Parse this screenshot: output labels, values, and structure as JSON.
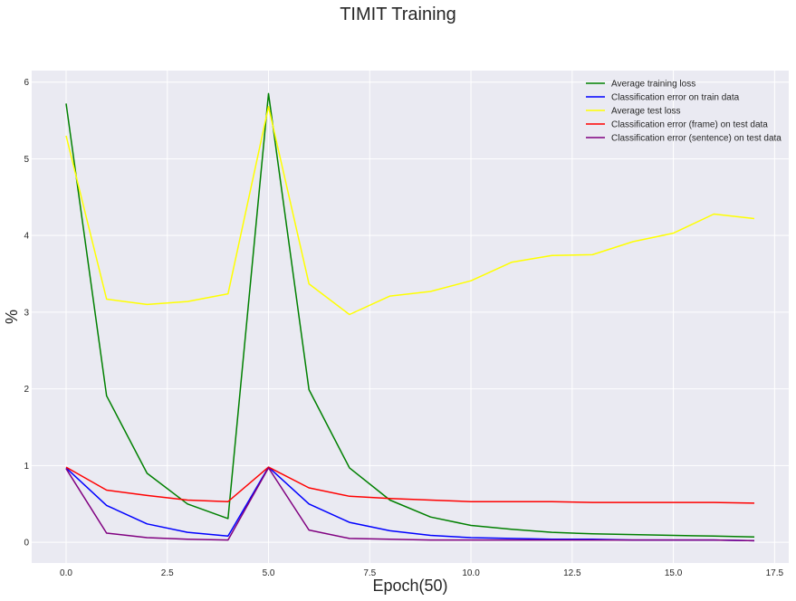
{
  "chart_data": {
    "type": "line",
    "title": "TIMIT Training",
    "xlabel": "Epoch(50)",
    "ylabel": "%",
    "xlim": [
      -0.85,
      17.85
    ],
    "ylim": [
      -0.27,
      6.15
    ],
    "xticks": [
      0.0,
      2.5,
      5.0,
      7.5,
      10.0,
      12.5,
      15.0,
      17.5
    ],
    "xtick_labels": [
      "0.0",
      "2.5",
      "5.0",
      "7.5",
      "10.0",
      "12.5",
      "15.0",
      "17.5"
    ],
    "yticks": [
      0,
      1,
      2,
      3,
      4,
      5,
      6
    ],
    "ytick_labels": [
      "0",
      "1",
      "2",
      "3",
      "4",
      "5",
      "6"
    ],
    "grid": true,
    "legend_position": "top-right",
    "x": [
      0,
      1,
      2,
      3,
      4,
      5,
      6,
      7,
      8,
      9,
      10,
      11,
      12,
      13,
      14,
      15,
      16,
      17
    ],
    "series": [
      {
        "name": "Average training loss",
        "color": "#008000",
        "values": [
          5.72,
          1.91,
          0.9,
          0.5,
          0.31,
          5.85,
          1.99,
          0.97,
          0.55,
          0.33,
          0.22,
          0.17,
          0.13,
          0.11,
          0.1,
          0.09,
          0.08,
          0.07
        ]
      },
      {
        "name": "Classification error on train data",
        "color": "#0000ff",
        "values": [
          0.97,
          0.48,
          0.24,
          0.13,
          0.08,
          0.98,
          0.5,
          0.26,
          0.15,
          0.09,
          0.06,
          0.05,
          0.04,
          0.04,
          0.03,
          0.03,
          0.03,
          0.02
        ]
      },
      {
        "name": "Average test loss",
        "color": "#ffff00",
        "values": [
          5.3,
          3.17,
          3.1,
          3.14,
          3.24,
          5.68,
          3.37,
          2.97,
          3.21,
          3.27,
          3.41,
          3.65,
          3.74,
          3.75,
          3.92,
          4.03,
          4.28,
          4.22
        ]
      },
      {
        "name": "Classification error (frame) on test data",
        "color": "#ff0000",
        "values": [
          0.98,
          0.68,
          0.61,
          0.55,
          0.53,
          0.98,
          0.71,
          0.6,
          0.57,
          0.55,
          0.53,
          0.53,
          0.53,
          0.52,
          0.52,
          0.52,
          0.52,
          0.51
        ]
      },
      {
        "name": "Classification error (sentence) on test data",
        "color": "#800080",
        "values": [
          0.96,
          0.12,
          0.06,
          0.04,
          0.03,
          0.97,
          0.16,
          0.05,
          0.04,
          0.03,
          0.03,
          0.03,
          0.03,
          0.03,
          0.03,
          0.03,
          0.03,
          0.02
        ]
      }
    ]
  }
}
